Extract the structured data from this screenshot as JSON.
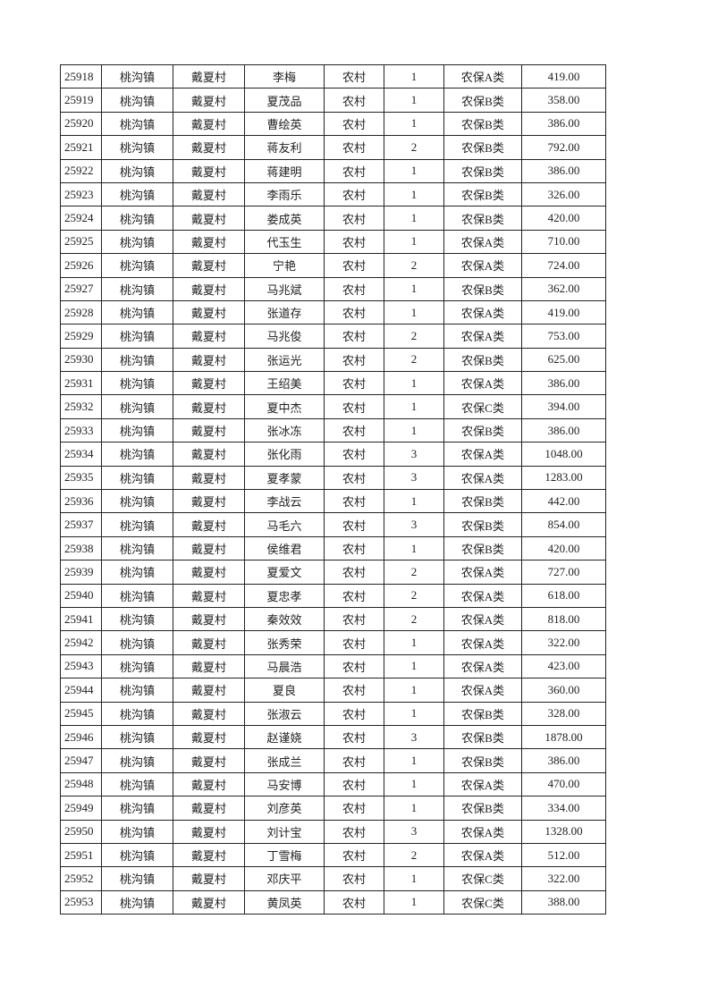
{
  "table": {
    "rows": [
      [
        "25918",
        "桃沟镇",
        "戴夏村",
        "李梅",
        "农村",
        "1",
        "农保A类",
        "419.00"
      ],
      [
        "25919",
        "桃沟镇",
        "戴夏村",
        "夏茂品",
        "农村",
        "1",
        "农保B类",
        "358.00"
      ],
      [
        "25920",
        "桃沟镇",
        "戴夏村",
        "曹绘英",
        "农村",
        "1",
        "农保B类",
        "386.00"
      ],
      [
        "25921",
        "桃沟镇",
        "戴夏村",
        "蒋友利",
        "农村",
        "2",
        "农保B类",
        "792.00"
      ],
      [
        "25922",
        "桃沟镇",
        "戴夏村",
        "蒋建明",
        "农村",
        "1",
        "农保B类",
        "386.00"
      ],
      [
        "25923",
        "桃沟镇",
        "戴夏村",
        "李雨乐",
        "农村",
        "1",
        "农保B类",
        "326.00"
      ],
      [
        "25924",
        "桃沟镇",
        "戴夏村",
        "娄成英",
        "农村",
        "1",
        "农保B类",
        "420.00"
      ],
      [
        "25925",
        "桃沟镇",
        "戴夏村",
        "代玉生",
        "农村",
        "1",
        "农保A类",
        "710.00"
      ],
      [
        "25926",
        "桃沟镇",
        "戴夏村",
        "宁艳",
        "农村",
        "2",
        "农保A类",
        "724.00"
      ],
      [
        "25927",
        "桃沟镇",
        "戴夏村",
        "马兆斌",
        "农村",
        "1",
        "农保B类",
        "362.00"
      ],
      [
        "25928",
        "桃沟镇",
        "戴夏村",
        "张道存",
        "农村",
        "1",
        "农保A类",
        "419.00"
      ],
      [
        "25929",
        "桃沟镇",
        "戴夏村",
        "马兆俊",
        "农村",
        "2",
        "农保A类",
        "753.00"
      ],
      [
        "25930",
        "桃沟镇",
        "戴夏村",
        "张运光",
        "农村",
        "2",
        "农保B类",
        "625.00"
      ],
      [
        "25931",
        "桃沟镇",
        "戴夏村",
        "王绍美",
        "农村",
        "1",
        "农保A类",
        "386.00"
      ],
      [
        "25932",
        "桃沟镇",
        "戴夏村",
        "夏中杰",
        "农村",
        "1",
        "农保C类",
        "394.00"
      ],
      [
        "25933",
        "桃沟镇",
        "戴夏村",
        "张冰冻",
        "农村",
        "1",
        "农保B类",
        "386.00"
      ],
      [
        "25934",
        "桃沟镇",
        "戴夏村",
        "张化雨",
        "农村",
        "3",
        "农保A类",
        "1048.00"
      ],
      [
        "25935",
        "桃沟镇",
        "戴夏村",
        "夏孝蒙",
        "农村",
        "3",
        "农保A类",
        "1283.00"
      ],
      [
        "25936",
        "桃沟镇",
        "戴夏村",
        "李战云",
        "农村",
        "1",
        "农保B类",
        "442.00"
      ],
      [
        "25937",
        "桃沟镇",
        "戴夏村",
        "马毛六",
        "农村",
        "3",
        "农保B类",
        "854.00"
      ],
      [
        "25938",
        "桃沟镇",
        "戴夏村",
        "侯维君",
        "农村",
        "1",
        "农保B类",
        "420.00"
      ],
      [
        "25939",
        "桃沟镇",
        "戴夏村",
        "夏爱文",
        "农村",
        "2",
        "农保A类",
        "727.00"
      ],
      [
        "25940",
        "桃沟镇",
        "戴夏村",
        "夏忠孝",
        "农村",
        "2",
        "农保A类",
        "618.00"
      ],
      [
        "25941",
        "桃沟镇",
        "戴夏村",
        "秦效效",
        "农村",
        "2",
        "农保A类",
        "818.00"
      ],
      [
        "25942",
        "桃沟镇",
        "戴夏村",
        "张秀荣",
        "农村",
        "1",
        "农保A类",
        "322.00"
      ],
      [
        "25943",
        "桃沟镇",
        "戴夏村",
        "马晨浩",
        "农村",
        "1",
        "农保A类",
        "423.00"
      ],
      [
        "25944",
        "桃沟镇",
        "戴夏村",
        "夏良",
        "农村",
        "1",
        "农保A类",
        "360.00"
      ],
      [
        "25945",
        "桃沟镇",
        "戴夏村",
        "张淑云",
        "农村",
        "1",
        "农保B类",
        "328.00"
      ],
      [
        "25946",
        "桃沟镇",
        "戴夏村",
        "赵谨娆",
        "农村",
        "3",
        "农保B类",
        "1878.00"
      ],
      [
        "25947",
        "桃沟镇",
        "戴夏村",
        "张成兰",
        "农村",
        "1",
        "农保B类",
        "386.00"
      ],
      [
        "25948",
        "桃沟镇",
        "戴夏村",
        "马安博",
        "农村",
        "1",
        "农保A类",
        "470.00"
      ],
      [
        "25949",
        "桃沟镇",
        "戴夏村",
        "刘彦英",
        "农村",
        "1",
        "农保B类",
        "334.00"
      ],
      [
        "25950",
        "桃沟镇",
        "戴夏村",
        "刘计宝",
        "农村",
        "3",
        "农保A类",
        "1328.00"
      ],
      [
        "25951",
        "桃沟镇",
        "戴夏村",
        "丁雪梅",
        "农村",
        "2",
        "农保A类",
        "512.00"
      ],
      [
        "25952",
        "桃沟镇",
        "戴夏村",
        "邓庆平",
        "农村",
        "1",
        "农保C类",
        "322.00"
      ],
      [
        "25953",
        "桃沟镇",
        "戴夏村",
        "黄凤英",
        "农村",
        "1",
        "农保C类",
        "388.00"
      ]
    ]
  }
}
